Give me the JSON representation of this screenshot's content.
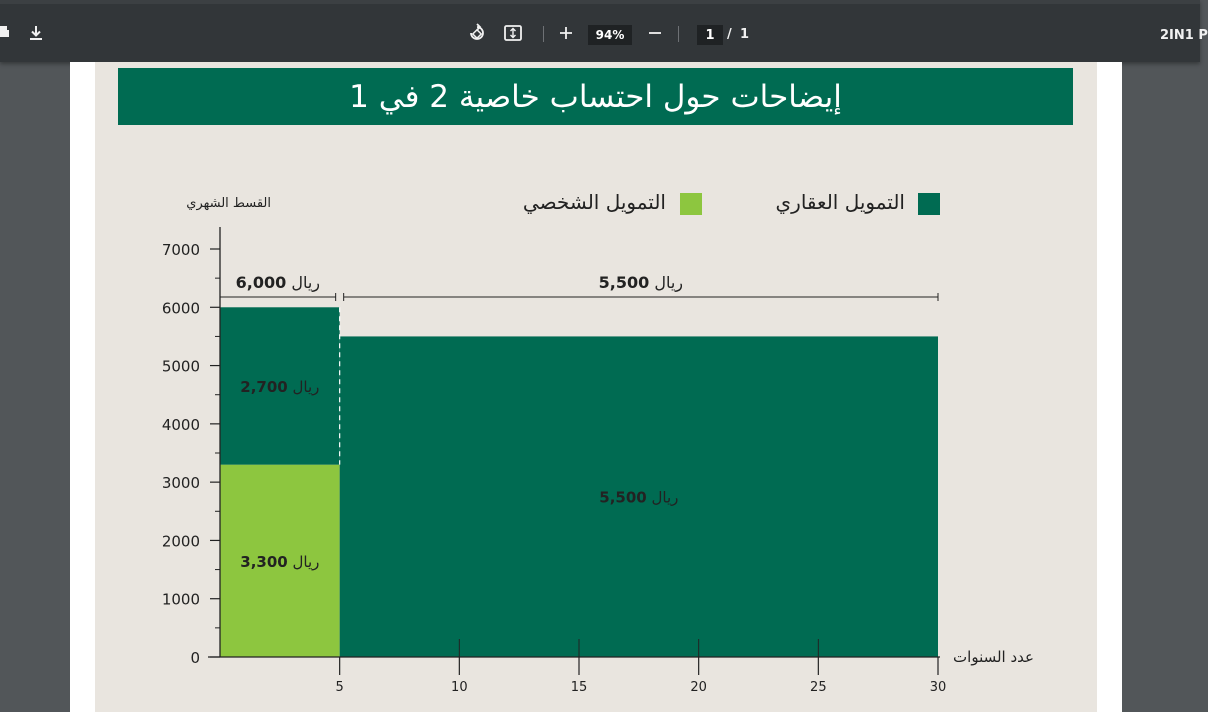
{
  "toolbar": {
    "zoom": "94%",
    "page_current": "1",
    "page_separator": "/",
    "page_total": "1",
    "doc_name": "2IN1 P",
    "icons": [
      "print-icon",
      "download-icon",
      "rotate-icon",
      "fit-page-icon",
      "zoom-in-icon",
      "zoom-out-icon"
    ]
  },
  "banner": {
    "title": "إيضاحات حول احتساب خاصية 2 في 1"
  },
  "colors": {
    "home": "#006b52",
    "personal": "#8dc63f",
    "page_bg": "#e9e5df",
    "banner": "#006b52"
  },
  "chart_data": {
    "type": "bar",
    "ylabel": "القسط الشهري",
    "xlabel": "عدد السنوات",
    "ylim": [
      0,
      7000
    ],
    "yticks": [
      0,
      1000,
      2000,
      3000,
      4000,
      5000,
      6000,
      7000
    ],
    "xlim": [
      0,
      30
    ],
    "xticks": [
      5,
      10,
      15,
      20,
      25,
      30
    ],
    "grid": false,
    "legend_position": "top",
    "series": [
      {
        "name": "التمويل العقاري",
        "color": "#006b52"
      },
      {
        "name": "التمويل الشخصي",
        "color": "#8dc63f"
      }
    ],
    "segments": [
      {
        "series": "التمويل الشخصي",
        "x_start": 0,
        "x_end": 5,
        "y_start": 0,
        "y_end": 3300,
        "label_value": "3,300",
        "label_unit": "ريال"
      },
      {
        "series": "التمويل العقاري",
        "x_start": 0,
        "x_end": 5,
        "y_start": 3300,
        "y_end": 6000,
        "label_value": "2,700",
        "label_unit": "ريال"
      },
      {
        "series": "التمويل العقاري",
        "x_start": 5,
        "x_end": 30,
        "y_start": 0,
        "y_end": 5500,
        "label_value": "5,500",
        "label_unit": "ريال"
      }
    ],
    "totals": [
      {
        "x_start": 0,
        "x_end": 5,
        "value": "6,000",
        "unit": "ريال"
      },
      {
        "x_start": 5,
        "x_end": 30,
        "value": "5,500",
        "unit": "ريال"
      }
    ]
  }
}
